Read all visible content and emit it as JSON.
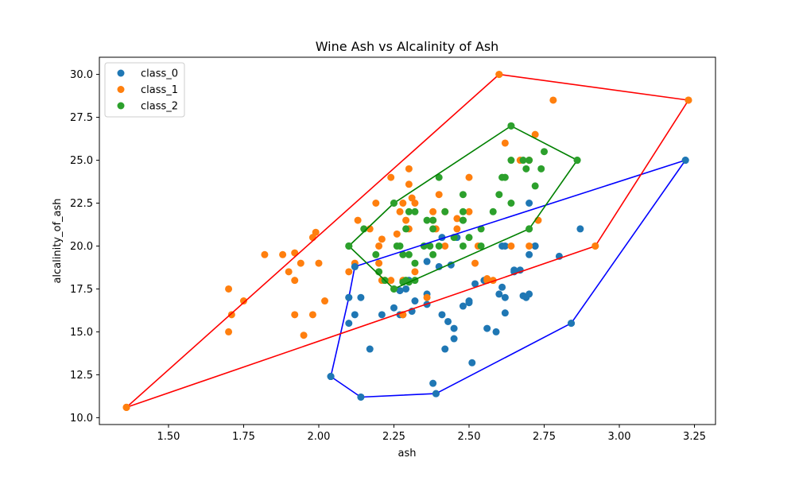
{
  "chart_data": {
    "type": "scatter",
    "title": "Wine Ash vs Alcalinity of Ash",
    "xlabel": "ash",
    "ylabel": "alcalinity_of_ash",
    "xlim": [
      1.27,
      3.32
    ],
    "ylim": [
      9.6,
      31.0
    ],
    "xticks": [
      1.5,
      1.75,
      2.0,
      2.25,
      2.5,
      2.75,
      3.0,
      3.25
    ],
    "xtick_labels": [
      "1.50",
      "1.75",
      "2.00",
      "2.25",
      "2.50",
      "2.75",
      "3.00",
      "3.25"
    ],
    "yticks": [
      10.0,
      12.5,
      15.0,
      17.5,
      20.0,
      22.5,
      25.0,
      27.5,
      30.0
    ],
    "ytick_labels": [
      "10.0",
      "12.5",
      "15.0",
      "17.5",
      "20.0",
      "22.5",
      "25.0",
      "27.5",
      "30.0"
    ],
    "grid": false,
    "legend_position": "top-left",
    "series": [
      {
        "name": "class_0",
        "color": "#1f77b4",
        "hull_color": "#0000ff",
        "points": [
          [
            2.43,
            15.6
          ],
          [
            2.14,
            11.2
          ],
          [
            2.67,
            18.6
          ],
          [
            2.5,
            16.8
          ],
          [
            2.87,
            21.0
          ],
          [
            2.45,
            15.2
          ],
          [
            2.45,
            14.6
          ],
          [
            2.61,
            17.6
          ],
          [
            2.17,
            14.0
          ],
          [
            2.27,
            16.0
          ],
          [
            2.3,
            18.0
          ],
          [
            2.32,
            16.8
          ],
          [
            2.41,
            16.0
          ],
          [
            2.39,
            11.4
          ],
          [
            2.38,
            12.0
          ],
          [
            2.7,
            17.2
          ],
          [
            2.72,
            20.0
          ],
          [
            2.62,
            20.0
          ],
          [
            2.48,
            16.5
          ],
          [
            2.56,
            15.2
          ],
          [
            2.28,
            16.0
          ],
          [
            2.65,
            18.6
          ],
          [
            2.36,
            16.6
          ],
          [
            2.52,
            17.8
          ],
          [
            2.61,
            20.0
          ],
          [
            3.22,
            25.0
          ],
          [
            2.62,
            16.1
          ],
          [
            2.14,
            17.0
          ],
          [
            2.8,
            19.4
          ],
          [
            2.21,
            16.0
          ],
          [
            2.7,
            22.5
          ],
          [
            2.36,
            17.2
          ],
          [
            2.55,
            18.0
          ],
          [
            2.51,
            13.2
          ],
          [
            2.12,
            16.0
          ],
          [
            2.59,
            15.0
          ],
          [
            2.29,
            17.5
          ],
          [
            2.1,
            17.0
          ],
          [
            2.44,
            18.9
          ],
          [
            2.12,
            18.8
          ],
          [
            2.4,
            18.8
          ],
          [
            2.27,
            17.4
          ],
          [
            2.04,
            12.4
          ],
          [
            2.6,
            17.2
          ],
          [
            2.42,
            14.0
          ],
          [
            2.5,
            16.7
          ],
          [
            2.36,
            19.1
          ],
          [
            2.68,
            17.1
          ],
          [
            2.1,
            15.5
          ],
          [
            2.69,
            17.0
          ],
          [
            2.31,
            16.2
          ],
          [
            2.25,
            16.4
          ],
          [
            2.62,
            17.0
          ],
          [
            2.84,
            15.5
          ],
          [
            2.41,
            20.5
          ],
          [
            2.46,
            20.5
          ],
          [
            2.65,
            18.5
          ],
          [
            2.7,
            19.5
          ],
          [
            2.72,
            20.0
          ]
        ],
        "hull": [
          [
            2.04,
            12.4
          ],
          [
            2.14,
            11.2
          ],
          [
            2.39,
            11.4
          ],
          [
            2.84,
            15.5
          ],
          [
            3.22,
            25.0
          ],
          [
            2.12,
            18.8
          ],
          [
            2.1,
            17.0
          ],
          [
            2.04,
            12.4
          ]
        ]
      },
      {
        "name": "class_1",
        "color": "#ff7f0e",
        "hull_color": "#ff0000",
        "points": [
          [
            1.36,
            10.6
          ],
          [
            2.6,
            30.0
          ],
          [
            3.23,
            28.5
          ],
          [
            2.92,
            20.0
          ],
          [
            1.7,
            17.5
          ],
          [
            1.71,
            16.0
          ],
          [
            1.75,
            16.8
          ],
          [
            1.7,
            15.0
          ],
          [
            1.82,
            19.5
          ],
          [
            1.88,
            19.5
          ],
          [
            1.9,
            18.5
          ],
          [
            1.92,
            19.6
          ],
          [
            1.92,
            18.0
          ],
          [
            1.92,
            16.0
          ],
          [
            1.94,
            19.0
          ],
          [
            1.95,
            14.8
          ],
          [
            1.98,
            20.5
          ],
          [
            1.98,
            16.0
          ],
          [
            1.99,
            20.8
          ],
          [
            2.0,
            19.0
          ],
          [
            2.02,
            16.8
          ],
          [
            2.1,
            18.5
          ],
          [
            2.12,
            19.0
          ],
          [
            2.13,
            21.5
          ],
          [
            2.17,
            21.0
          ],
          [
            2.19,
            22.5
          ],
          [
            2.2,
            20.0
          ],
          [
            2.2,
            19.0
          ],
          [
            2.2,
            18.5
          ],
          [
            2.21,
            20.4
          ],
          [
            2.21,
            18.0
          ],
          [
            2.22,
            18.0
          ],
          [
            2.24,
            18.0
          ],
          [
            2.24,
            24.0
          ],
          [
            2.26,
            20.7
          ],
          [
            2.27,
            22.0
          ],
          [
            2.28,
            22.5
          ],
          [
            2.28,
            18.0
          ],
          [
            2.28,
            16.0
          ],
          [
            2.29,
            21.5
          ],
          [
            2.3,
            24.5
          ],
          [
            2.3,
            23.6
          ],
          [
            2.3,
            21.0
          ],
          [
            2.31,
            22.8
          ],
          [
            2.32,
            22.5
          ],
          [
            2.32,
            18.5
          ],
          [
            2.36,
            17.0
          ],
          [
            2.38,
            21.5
          ],
          [
            2.38,
            22.0
          ],
          [
            2.39,
            21.0
          ],
          [
            2.4,
            23.0
          ],
          [
            2.42,
            20.0
          ],
          [
            2.42,
            22.0
          ],
          [
            2.46,
            21.6
          ],
          [
            2.46,
            21.0
          ],
          [
            2.5,
            24.0
          ],
          [
            2.5,
            22.0
          ],
          [
            2.52,
            19.0
          ],
          [
            2.53,
            20.0
          ],
          [
            2.56,
            18.0
          ],
          [
            2.56,
            18.1
          ],
          [
            2.58,
            18.0
          ],
          [
            2.62,
            26.0
          ],
          [
            2.64,
            20.0
          ],
          [
            2.67,
            25.0
          ],
          [
            2.7,
            25.0
          ],
          [
            2.7,
            20.0
          ],
          [
            2.72,
            26.5
          ],
          [
            2.73,
            21.5
          ],
          [
            2.78,
            28.5
          ]
        ],
        "hull": [
          [
            1.36,
            10.6
          ],
          [
            2.92,
            20.0
          ],
          [
            3.23,
            28.5
          ],
          [
            2.6,
            30.0
          ],
          [
            1.36,
            10.6
          ]
        ]
      },
      {
        "name": "class_2",
        "color": "#2ca02c",
        "hull_color": "#008000",
        "points": [
          [
            2.64,
            27.0
          ],
          [
            2.86,
            25.0
          ],
          [
            2.1,
            20.0
          ],
          [
            2.15,
            21.0
          ],
          [
            2.19,
            19.5
          ],
          [
            2.2,
            18.5
          ],
          [
            2.22,
            18.0
          ],
          [
            2.25,
            17.5
          ],
          [
            2.25,
            22.5
          ],
          [
            2.26,
            20.0
          ],
          [
            2.28,
            19.5
          ],
          [
            2.28,
            17.9
          ],
          [
            2.29,
            18.0
          ],
          [
            2.3,
            19.5
          ],
          [
            2.3,
            22.0
          ],
          [
            2.3,
            17.9
          ],
          [
            2.32,
            22.0
          ],
          [
            2.32,
            18.0
          ],
          [
            2.32,
            19.0
          ],
          [
            2.35,
            20.0
          ],
          [
            2.36,
            21.5
          ],
          [
            2.37,
            20.0
          ],
          [
            2.38,
            19.5
          ],
          [
            2.38,
            21.0
          ],
          [
            2.38,
            21.5
          ],
          [
            2.4,
            24.0
          ],
          [
            2.4,
            20.0
          ],
          [
            2.42,
            22.0
          ],
          [
            2.45,
            20.5
          ],
          [
            2.48,
            23.0
          ],
          [
            2.48,
            22.0
          ],
          [
            2.48,
            21.5
          ],
          [
            2.48,
            20.0
          ],
          [
            2.48,
            21.5
          ],
          [
            2.5,
            20.5
          ],
          [
            2.54,
            20.0
          ],
          [
            2.54,
            21.0
          ],
          [
            2.58,
            22.0
          ],
          [
            2.6,
            23.0
          ],
          [
            2.61,
            24.0
          ],
          [
            2.62,
            24.0
          ],
          [
            2.64,
            22.5
          ],
          [
            2.64,
            25.0
          ],
          [
            2.68,
            25.0
          ],
          [
            2.69,
            24.5
          ],
          [
            2.7,
            25.0
          ],
          [
            2.7,
            21.0
          ],
          [
            2.72,
            23.5
          ],
          [
            2.74,
            24.5
          ],
          [
            2.75,
            25.5
          ],
          [
            2.27,
            20.0
          ],
          [
            2.29,
            21.0
          ]
        ],
        "hull": [
          [
            2.1,
            20.0
          ],
          [
            2.25,
            17.5
          ],
          [
            2.7,
            21.0
          ],
          [
            2.86,
            25.0
          ],
          [
            2.64,
            27.0
          ],
          [
            2.25,
            22.5
          ],
          [
            2.1,
            20.0
          ]
        ]
      }
    ]
  }
}
